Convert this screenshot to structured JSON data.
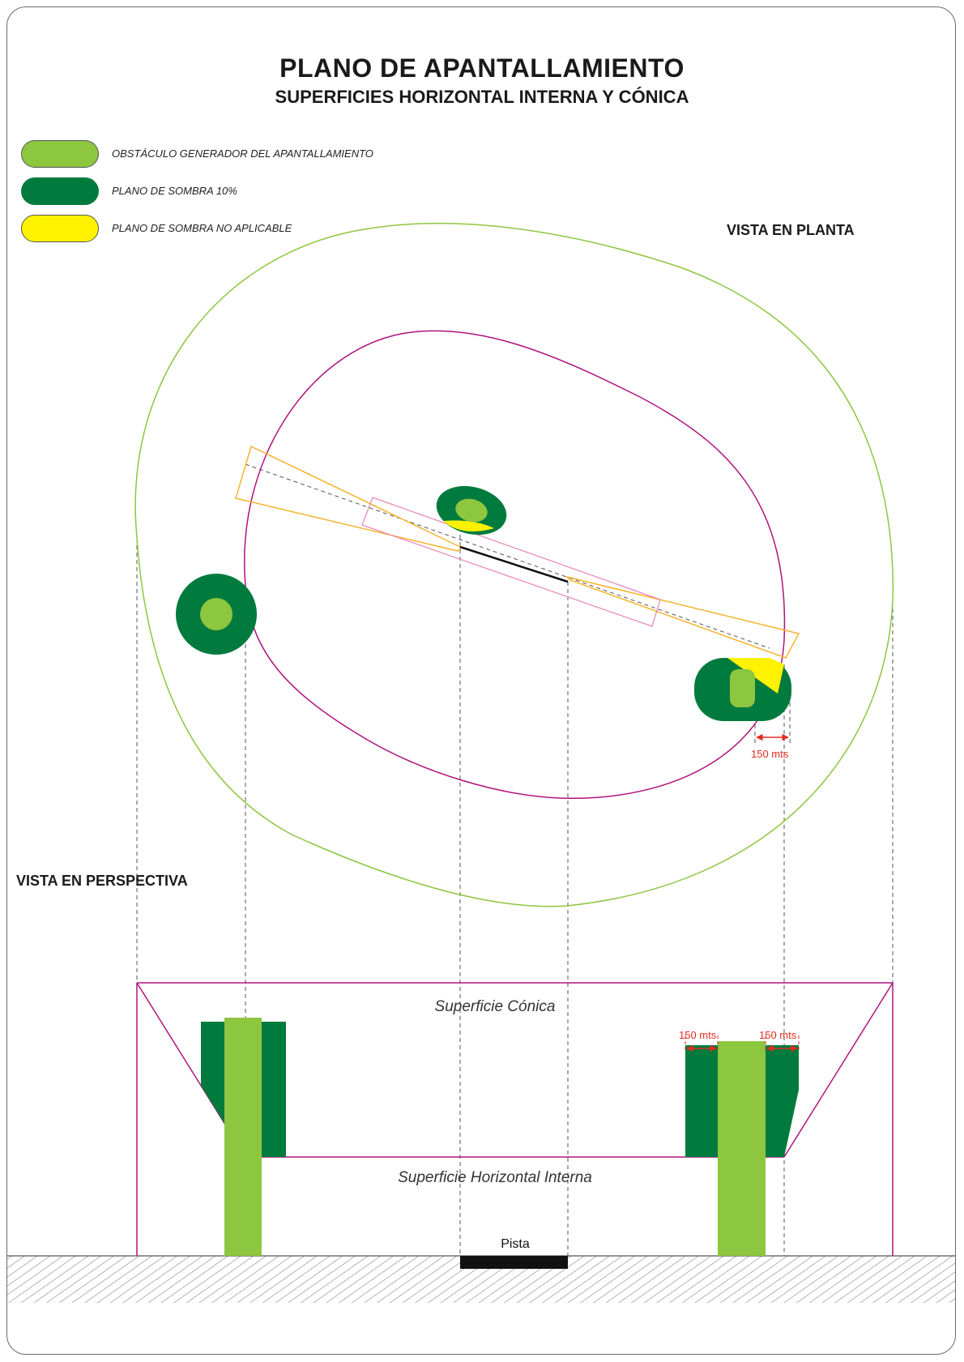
{
  "title": "PLANO DE APANTALLAMIENTO",
  "subtitle": "SUPERFICIES HORIZONTAL INTERNA Y CÓNICA",
  "legend": [
    {
      "label": "OBSTÁCULO GENERADOR DEL APANTALLAMIENTO",
      "color": "#8dc63f"
    },
    {
      "label": "PLANO DE SOMBRA 10%",
      "color": "#007a3d"
    },
    {
      "label": "PLANO DE SOMBRA NO APLICABLE",
      "color": "#fff200"
    }
  ],
  "views": {
    "plan": "VISTA EN PLANTA",
    "perspective": "VISTA EN PERSPECTIVA"
  },
  "plan_dimension": "150 mts",
  "perspective_dimension_left": "150 mts",
  "perspective_dimension_right": "150 mts",
  "surfaces": {
    "conical": "Superficie Cónica",
    "inner_horizontal": "Superficie Horizontal Interna"
  },
  "runway_label": "Pista",
  "colors": {
    "obstacle": "#8dc63f",
    "shadow": "#007a3d",
    "not_applicable": "#fff200",
    "conical_outline": "#8dc63f",
    "horizontal_outline": "#b0127e",
    "approach_outline": "#f7b32b",
    "dimension": "#e52b20"
  }
}
